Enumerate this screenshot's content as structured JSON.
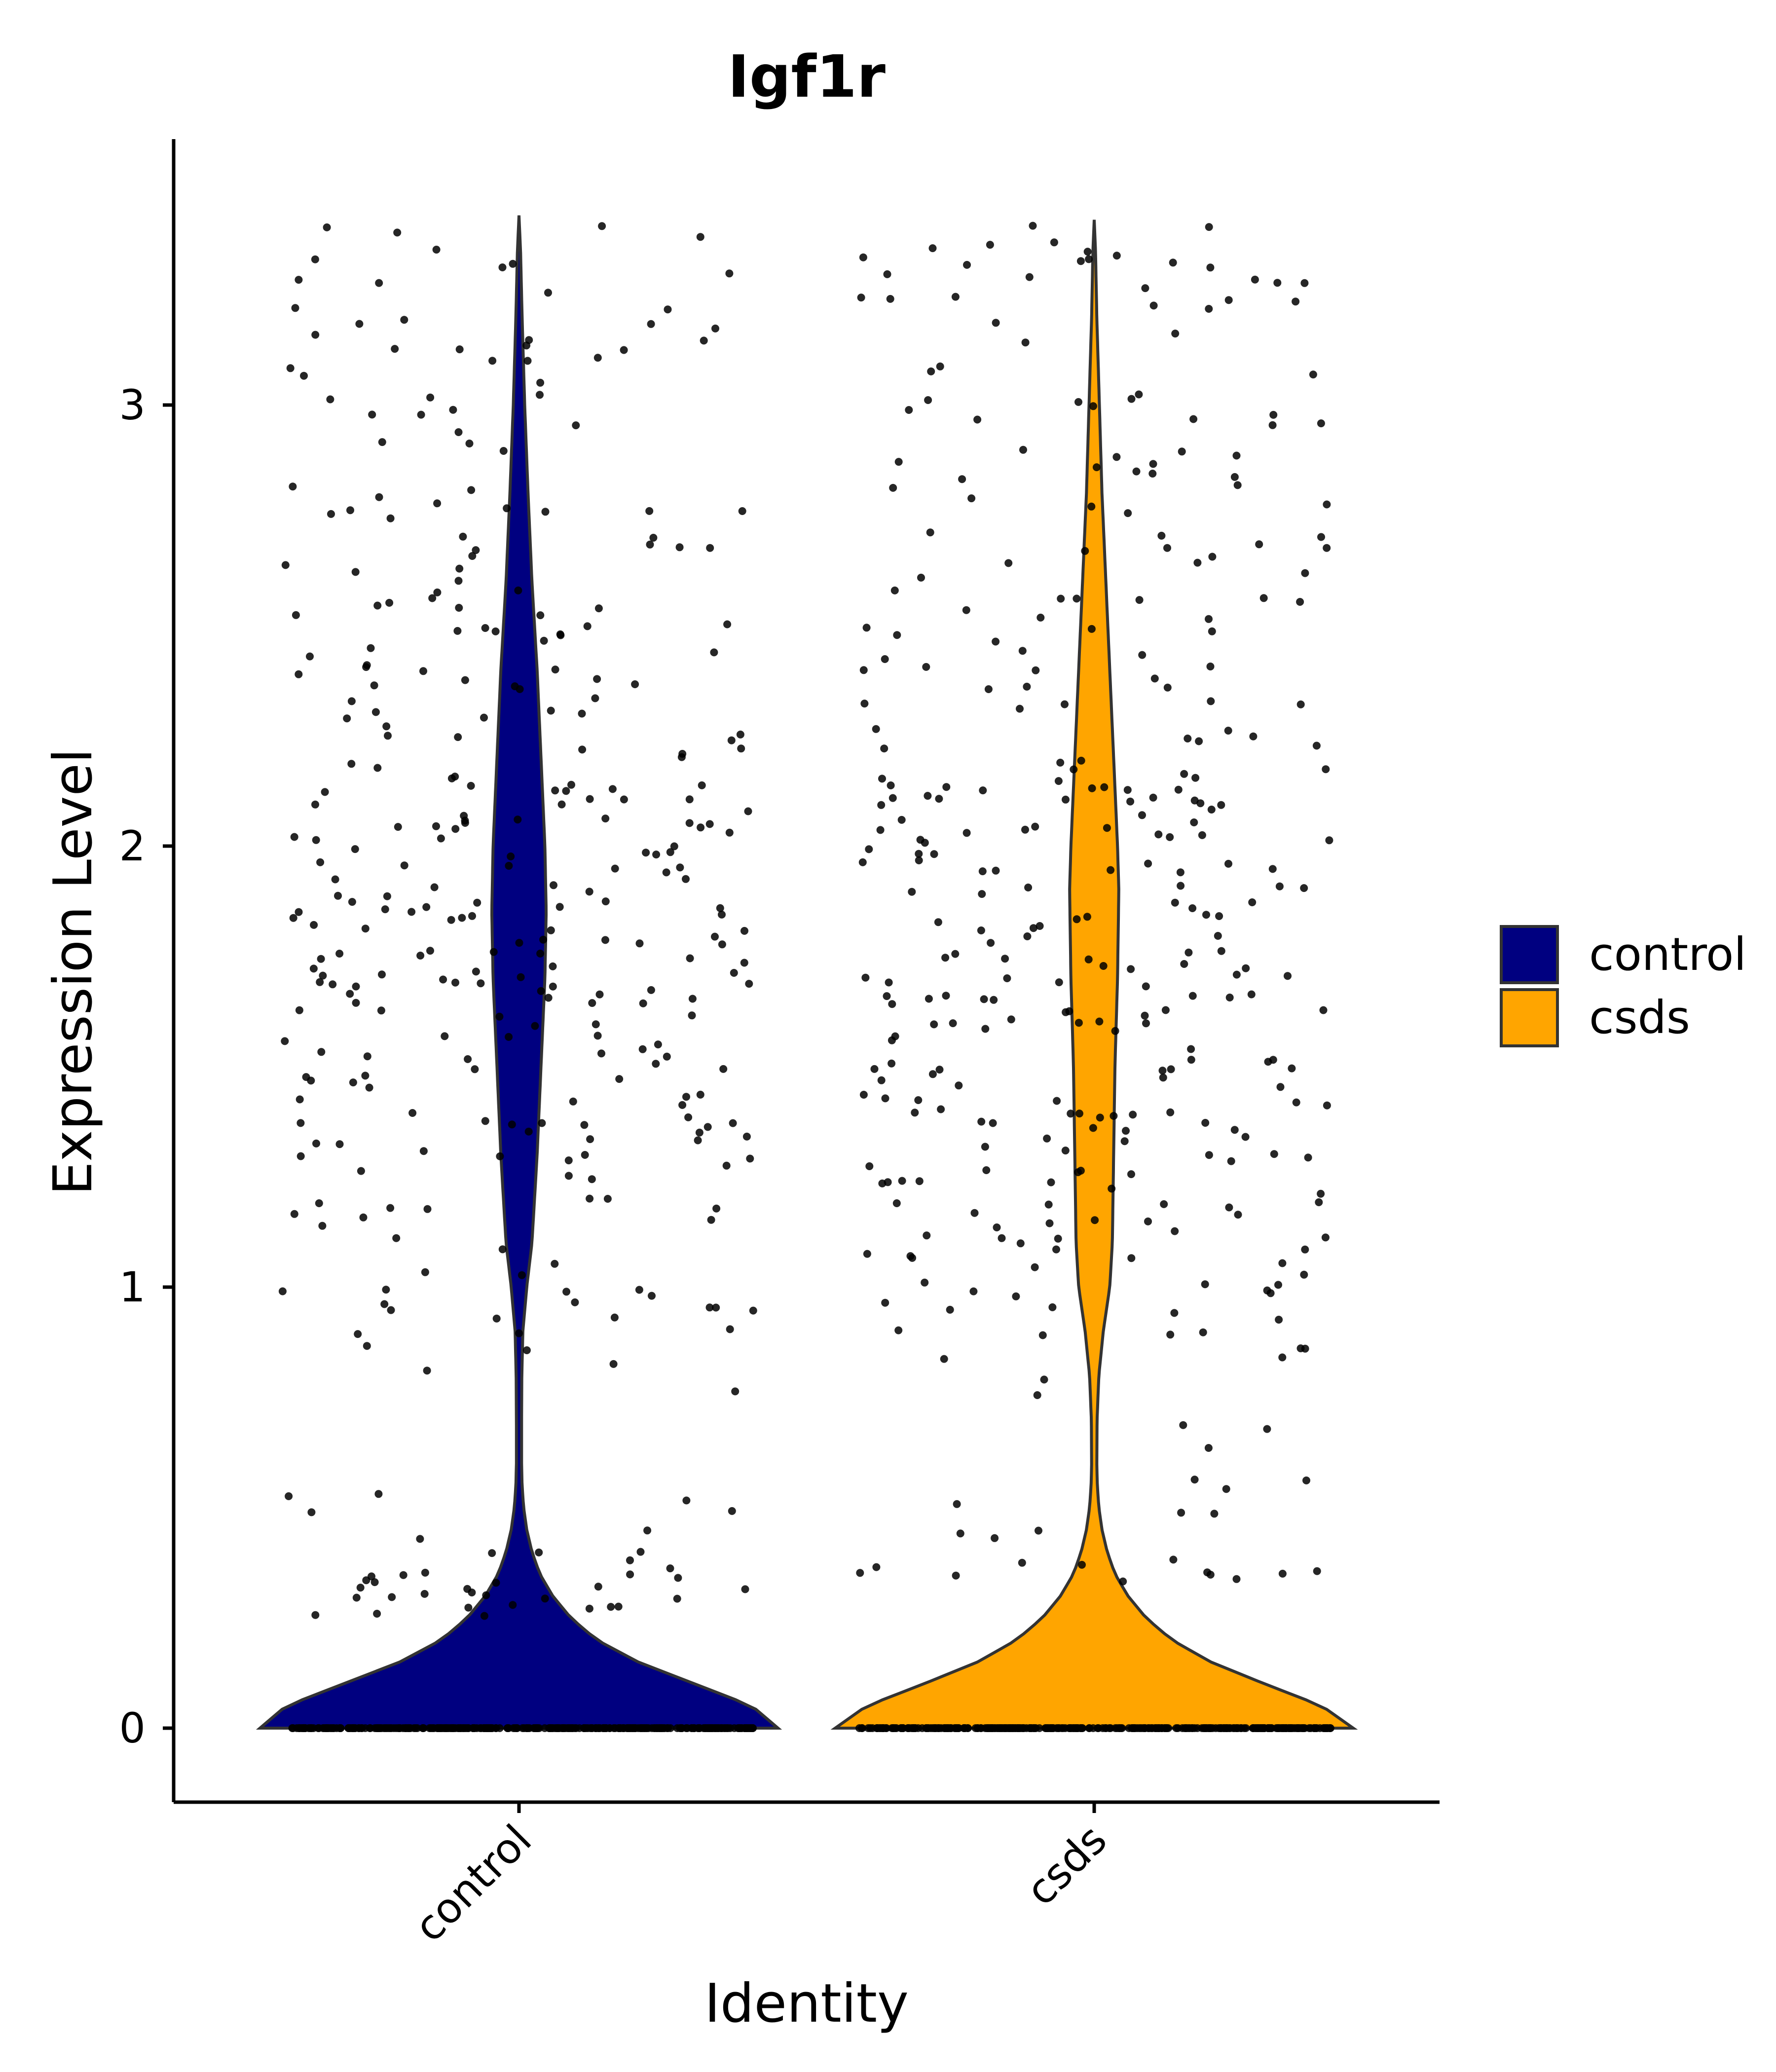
{
  "chart_data": {
    "type": "violin",
    "title": "Igf1r",
    "xlabel": "Identity",
    "ylabel": "Expression Level",
    "categories": [
      "control",
      "csds"
    ],
    "yticks": [
      0,
      1,
      2,
      3
    ],
    "ylim": [
      -0.17,
      3.6
    ],
    "grid": false,
    "legend": {
      "position": "right",
      "entries": [
        "control",
        "csds"
      ]
    },
    "colors": {
      "control": "#000080",
      "csds": "#FFA500"
    },
    "series": [
      {
        "name": "control",
        "ymax": 3.43,
        "density_profile": [
          [
            0.0,
            1.0
          ],
          [
            0.05,
            0.9
          ],
          [
            0.1,
            0.68
          ],
          [
            0.15,
            0.46
          ],
          [
            0.2,
            0.3
          ],
          [
            0.25,
            0.2
          ],
          [
            0.3,
            0.13
          ],
          [
            0.35,
            0.08
          ],
          [
            0.4,
            0.05
          ],
          [
            0.45,
            0.03
          ],
          [
            0.5,
            0.018
          ],
          [
            0.55,
            0.012
          ],
          [
            0.6,
            0.01
          ],
          [
            0.7,
            0.01
          ],
          [
            0.8,
            0.011
          ],
          [
            0.9,
            0.015
          ],
          [
            1.0,
            0.03
          ],
          [
            1.1,
            0.05
          ],
          [
            1.3,
            0.07
          ],
          [
            1.5,
            0.085
          ],
          [
            1.7,
            0.1
          ],
          [
            1.85,
            0.105
          ],
          [
            2.0,
            0.1
          ],
          [
            2.2,
            0.085
          ],
          [
            2.4,
            0.07
          ],
          [
            2.6,
            0.05
          ],
          [
            2.8,
            0.035
          ],
          [
            3.0,
            0.022
          ],
          [
            3.2,
            0.012
          ],
          [
            3.35,
            0.006
          ],
          [
            3.43,
            0.0
          ]
        ],
        "points": {
          "zero_fraction": 0.5,
          "value_range": [
            0.25,
            3.43
          ],
          "approx_count": 700
        }
      },
      {
        "name": "csds",
        "ymax": 3.42,
        "density_profile": [
          [
            0.0,
            1.0
          ],
          [
            0.05,
            0.88
          ],
          [
            0.1,
            0.66
          ],
          [
            0.15,
            0.45
          ],
          [
            0.2,
            0.3
          ],
          [
            0.25,
            0.2
          ],
          [
            0.3,
            0.13
          ],
          [
            0.35,
            0.08
          ],
          [
            0.4,
            0.05
          ],
          [
            0.45,
            0.03
          ],
          [
            0.5,
            0.018
          ],
          [
            0.55,
            0.012
          ],
          [
            0.6,
            0.01
          ],
          [
            0.7,
            0.011
          ],
          [
            0.8,
            0.018
          ],
          [
            0.9,
            0.035
          ],
          [
            1.0,
            0.06
          ],
          [
            1.1,
            0.07
          ],
          [
            1.3,
            0.075
          ],
          [
            1.5,
            0.08
          ],
          [
            1.7,
            0.09
          ],
          [
            1.9,
            0.095
          ],
          [
            2.0,
            0.09
          ],
          [
            2.2,
            0.075
          ],
          [
            2.4,
            0.06
          ],
          [
            2.6,
            0.045
          ],
          [
            2.8,
            0.03
          ],
          [
            3.0,
            0.02
          ],
          [
            3.2,
            0.01
          ],
          [
            3.35,
            0.005
          ],
          [
            3.42,
            0.0
          ]
        ],
        "points": {
          "zero_fraction": 0.5,
          "value_range": [
            0.33,
            3.42
          ],
          "approx_count": 700
        }
      }
    ]
  }
}
